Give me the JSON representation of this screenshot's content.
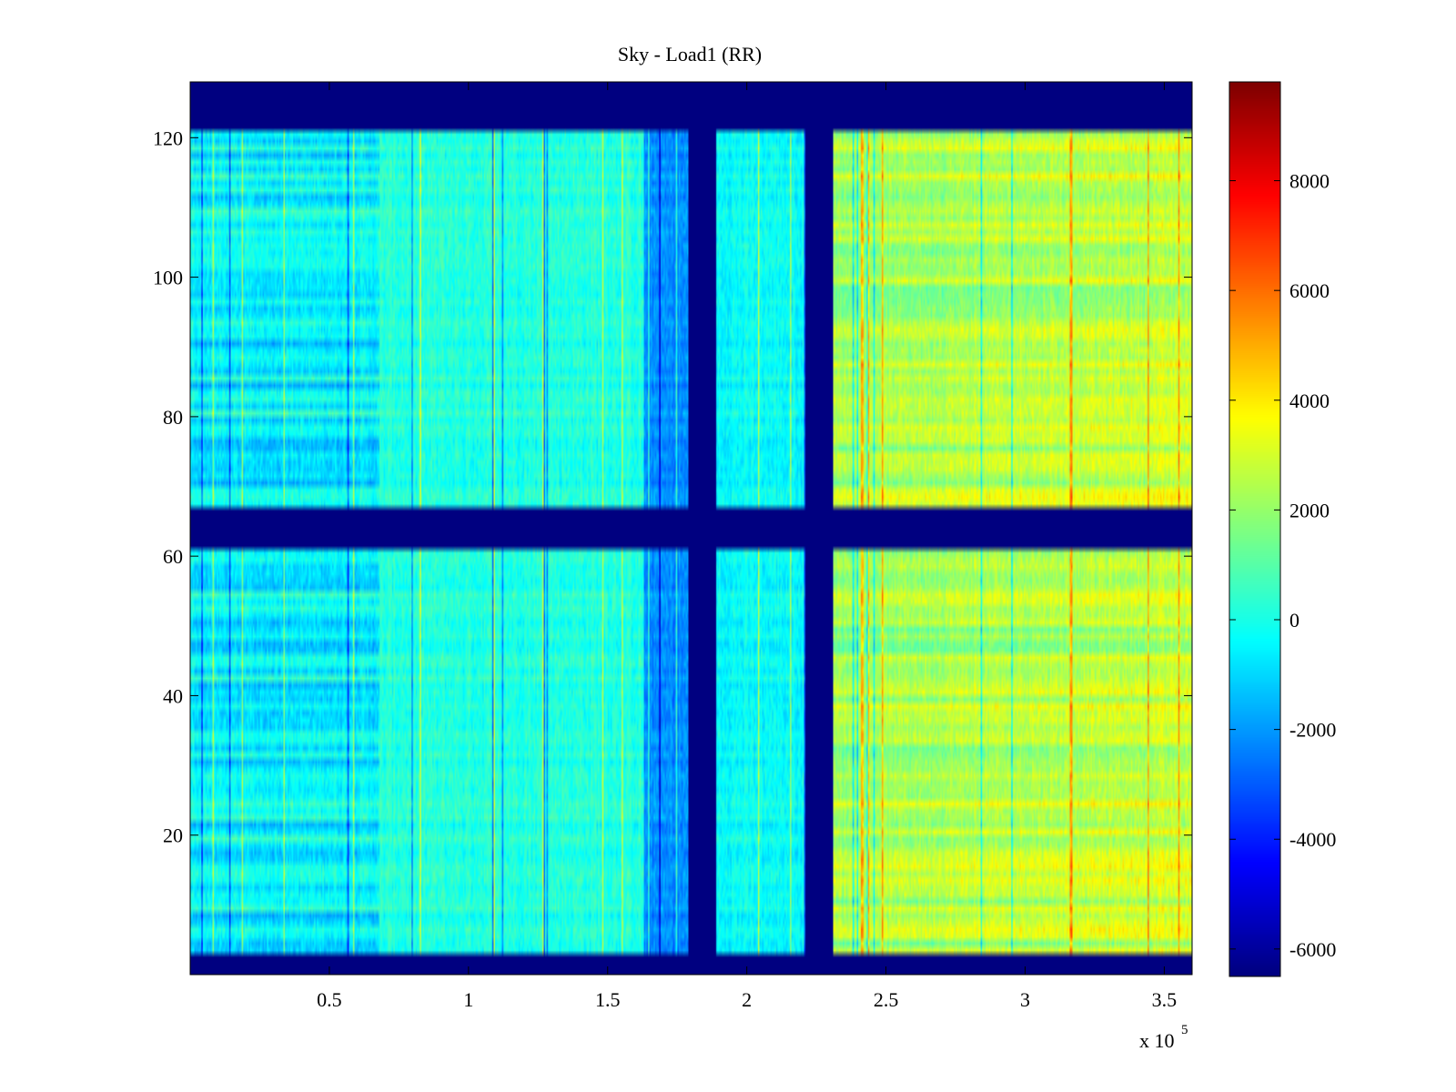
{
  "chart_data": {
    "type": "heatmap",
    "title": "Sky - Load1 (RR)",
    "xlabel": "",
    "ylabel": "",
    "x_multiplier_label": "x 10",
    "x_multiplier_exponent": "5",
    "xlim": [
      0,
      3.6
    ],
    "ylim": [
      0,
      128
    ],
    "x_ticks": [
      0.5,
      1,
      1.5,
      2,
      2.5,
      3,
      3.5
    ],
    "x_tick_labels": [
      "0.5",
      "1",
      "1.5",
      "2",
      "2.5",
      "3",
      "3.5"
    ],
    "y_ticks": [
      20,
      40,
      60,
      80,
      100,
      120
    ],
    "y_tick_labels": [
      "20",
      "40",
      "60",
      "80",
      "100",
      "120"
    ],
    "colormap": "jet",
    "clim": [
      -6500,
      9800
    ],
    "colorbar": {
      "ticks": [
        -6000,
        -4000,
        -2000,
        0,
        2000,
        4000,
        6000,
        8000
      ],
      "tick_labels": [
        "-6000",
        "-4000",
        "-2000",
        "0",
        "2000",
        "4000",
        "6000",
        "8000"
      ]
    },
    "masked_rows": [
      [
        0,
        3
      ],
      [
        61,
        67
      ],
      [
        121,
        128
      ]
    ],
    "masked_columns": [
      [
        1.79,
        1.89
      ],
      [
        2.21,
        2.31
      ]
    ],
    "column_bands": [
      {
        "x": [
          0,
          0.68
        ],
        "level": -500
      },
      {
        "x": [
          0.68,
          1.63
        ],
        "level": 200
      },
      {
        "x": [
          1.63,
          1.79
        ],
        "level": -2200
      },
      {
        "x": [
          1.89,
          2.21
        ],
        "level": -300
      },
      {
        "x": [
          2.31,
          3.6
        ],
        "level": 1800
      }
    ],
    "grid": false,
    "legend": "none"
  }
}
